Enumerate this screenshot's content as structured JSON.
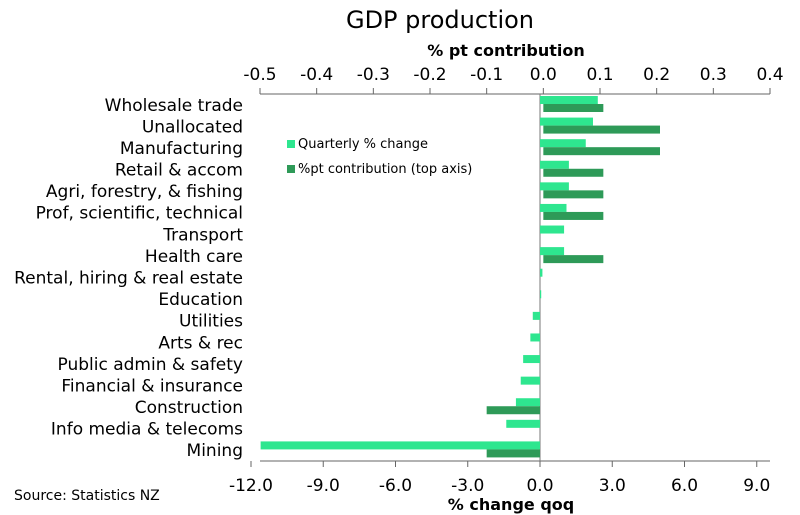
{
  "chart_data": {
    "type": "bar",
    "title": "GDP production",
    "top_axis_label": "% pt contribution",
    "bottom_axis_label": "% change qoq",
    "source": "Source:  Statistics NZ",
    "categories": [
      "Wholesale trade",
      "Unallocated",
      "Manufacturing",
      "Retail & accom",
      "Agri, forestry, & fishing",
      "Prof, scientific, technical",
      "Transport",
      "Health care",
      "Rental, hiring & real estate",
      "Education",
      "Utilities",
      "Arts & rec",
      "Public admin & safety",
      "Financial & insurance",
      "Construction",
      "Info media & telecoms",
      "Mining"
    ],
    "series": [
      {
        "name": "Quarterly % change",
        "axis": "bottom",
        "color": "#2ee68f",
        "values": [
          2.4,
          2.2,
          1.9,
          1.2,
          1.2,
          1.1,
          1.0,
          1.0,
          0.1,
          0.05,
          -0.3,
          -0.4,
          -0.7,
          -0.8,
          -1.0,
          -1.4,
          -11.6
        ]
      },
      {
        "name": "%pt contribution (top axis)",
        "axis": "top",
        "color": "#2e9a58",
        "values": [
          0.1,
          0.2,
          0.2,
          0.1,
          0.1,
          0.1,
          0.0,
          0.1,
          0.0,
          0.0,
          0.0,
          0.0,
          0.0,
          0.0,
          -0.1,
          0.0,
          -0.1
        ]
      }
    ],
    "top_axis": {
      "min": -0.5,
      "max": 0.4,
      "ticks": [
        "-0.5",
        "-0.4",
        "-0.3",
        "-0.2",
        "-0.1",
        "0.0",
        "0.1",
        "0.2",
        "0.3",
        "0.4"
      ]
    },
    "bottom_axis": {
      "min": -12.0,
      "max": 9.0,
      "ticks": [
        "-12.0",
        "-9.0",
        "-6.0",
        "-3.0",
        "0.0",
        "3.0",
        "6.0",
        "9.0"
      ]
    },
    "legend_position": "top-left of plot"
  }
}
